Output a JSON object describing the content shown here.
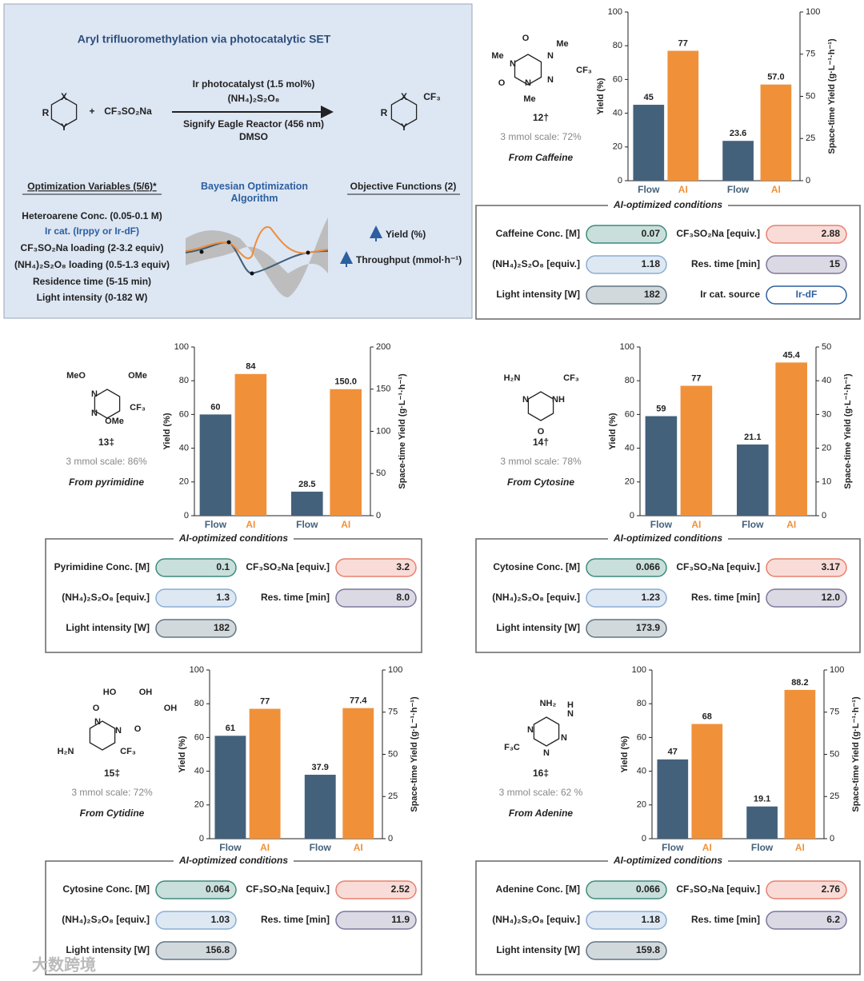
{
  "scheme": {
    "title": "Aryl trifluoromethylation via photocatalytic SET",
    "reactant_atoms": [
      "R",
      "X",
      "Y"
    ],
    "plus": "+",
    "reagent": "CF₃SO₂Na",
    "conditions": [
      "Ir photocatalyst (1.5 mol%)",
      "(NH₄)₂S₂O₈",
      "Signify Eagle Reactor (456 nm)",
      "DMSO"
    ],
    "product_atoms": [
      "R",
      "X",
      "Y",
      "CF₃"
    ],
    "variables": {
      "heading": "Optimization Variables (5/6)*",
      "items": [
        "Heteroarene Conc. (0.05-0.1 M)",
        "Ir cat. (Irppy or Ir-dF)",
        "CF₃SO₂Na loading (2-3.2 equiv)",
        "(NH₄)₂S₂O₈ loading (0.5-1.3 equiv)",
        "Residence time (5-15 min)",
        "Light intensity (0-182 W)"
      ]
    },
    "algorithm": "Bayesian Optimization Algorithm",
    "objectives": {
      "heading": "Objective Functions (2)",
      "items": [
        "Yield (%)",
        "Throughput (mmol·h⁻¹)"
      ]
    }
  },
  "panels": [
    {
      "compound": {
        "atoms": [
          "O",
          "Me",
          "N",
          "Me",
          "N",
          "CF₃",
          "N",
          "O",
          "N",
          "Me"
        ],
        "label": "12†",
        "scale": "3 mmol scale: 72%",
        "source": "From Caffeine"
      },
      "conditions": {
        "title": "AI-optimized conditions",
        "items": [
          {
            "label": "Caffeine Conc. [M]",
            "value": "0.07",
            "color": "#3c8c7c"
          },
          {
            "label": "CF₃SO₂Na [equiv.]",
            "value": "2.88",
            "color": "#e8806e"
          },
          {
            "label": "(NH₄)₂S₂O₈ [equiv.]",
            "value": "1.18",
            "color": "#8aaed4"
          },
          {
            "label": "Res. time [min]",
            "value": "15",
            "color": "#7f769c"
          },
          {
            "label": "Light intensity [W]",
            "value": "182",
            "color": "#5f7584"
          },
          {
            "label": "Ir cat. source",
            "value": "Ir-dF",
            "color": "#2c5fa0"
          }
        ]
      }
    },
    {
      "compound": {
        "atoms": [
          "MeO",
          "OMe",
          "N",
          "N",
          "CF₃",
          "OMe"
        ],
        "label": "13‡",
        "scale": "3 mmol scale: 86%",
        "source": "From pyrimidine"
      },
      "conditions": {
        "title": "AI-optimized conditions",
        "items": [
          {
            "label": "Pyrimidine Conc. [M]",
            "value": "0.1",
            "color": "#3c8c7c"
          },
          {
            "label": "CF₃SO₂Na [equiv.]",
            "value": "3.2",
            "color": "#e8806e"
          },
          {
            "label": "(NH₄)₂S₂O₈ [equiv.]",
            "value": "1.3",
            "color": "#8aaed4"
          },
          {
            "label": "Res. time [min]",
            "value": "8.0",
            "color": "#7f769c"
          },
          {
            "label": "Light intensity [W]",
            "value": "182",
            "color": "#5f7584"
          }
        ]
      }
    },
    {
      "compound": {
        "atoms": [
          "H₂N",
          "CF₃",
          "N",
          "NH",
          "O"
        ],
        "label": "14†",
        "scale": "3 mmol scale: 78%",
        "source": "From Cytosine"
      },
      "conditions": {
        "title": "AI-optimized conditions",
        "items": [
          {
            "label": "Cytosine Conc. [M]",
            "value": "0.066",
            "color": "#3c8c7c"
          },
          {
            "label": "CF₃SO₂Na [equiv.]",
            "value": "3.17",
            "color": "#e8806e"
          },
          {
            "label": "(NH₄)₂S₂O₈ [equiv.]",
            "value": "1.23",
            "color": "#8aaed4"
          },
          {
            "label": "Res. time [min]",
            "value": "12.0",
            "color": "#7f769c"
          },
          {
            "label": "Light intensity [W]",
            "value": "173.9",
            "color": "#5f7584"
          }
        ]
      }
    },
    {
      "compound": {
        "atoms": [
          "HO",
          "OH",
          "O",
          "N",
          "OH",
          "O",
          "N",
          "H₂N",
          "CF₃"
        ],
        "label": "15‡",
        "scale": "3 mmol scale: 72%",
        "source": "From Cytidine"
      },
      "conditions": {
        "title": "AI-optimized conditions",
        "items": [
          {
            "label": "Cytosine Conc. [M]",
            "value": "0.064",
            "color": "#3c8c7c"
          },
          {
            "label": "CF₃SO₂Na [equiv.]",
            "value": "2.52",
            "color": "#e8806e"
          },
          {
            "label": "(NH₄)₂S₂O₈ [equiv.]",
            "value": "1.03",
            "color": "#8aaed4"
          },
          {
            "label": "Res. time [min]",
            "value": "11.9",
            "color": "#7f769c"
          },
          {
            "label": "Light intensity [W]",
            "value": "156.8",
            "color": "#5f7584"
          }
        ]
      }
    },
    {
      "compound": {
        "atoms": [
          "NH₂",
          "H",
          "N",
          "N",
          "N",
          "F₃C",
          "N"
        ],
        "label": "16‡",
        "scale": "3 mmol scale: 62 %",
        "source": "From Adenine"
      },
      "conditions": {
        "title": "AI-optimized conditions",
        "items": [
          {
            "label": "Adenine Conc. [M]",
            "value": "0.066",
            "color": "#3c8c7c"
          },
          {
            "label": "CF₃SO₂Na [equiv.]",
            "value": "2.76",
            "color": "#e8806e"
          },
          {
            "label": "(NH₄)₂S₂O₈ [equiv.]",
            "value": "1.18",
            "color": "#8aaed4"
          },
          {
            "label": "Res. time [min]",
            "value": "6.2",
            "color": "#7f769c"
          },
          {
            "label": "Light intensity [W]",
            "value": "159.8",
            "color": "#5f7584"
          }
        ]
      }
    }
  ],
  "chart_data": [
    {
      "type": "bar",
      "ylabel": "Yield (%)",
      "y2label": "Space-time Yield (g·L⁻¹·h⁻¹)",
      "categories": [
        "Flow",
        "AI"
      ],
      "colors": [
        "#44617b",
        "#f0913a"
      ],
      "series": [
        {
          "values": [
            45,
            77
          ]
        },
        {
          "axis": "y2",
          "values": [
            23.6,
            57.0
          ],
          "value_labels": [
            "23.6",
            "57.0"
          ]
        }
      ],
      "ylim": [
        0,
        100
      ],
      "yticks": [
        0,
        20,
        40,
        60,
        80,
        100
      ],
      "y2lim": [
        0,
        100
      ],
      "y2ticks": [
        0,
        25,
        50,
        75,
        100
      ]
    },
    {
      "type": "bar",
      "ylabel": "Yield (%)",
      "y2label": "Space-time Yield (g·L⁻¹·h⁻¹)",
      "categories": [
        "Flow",
        "AI"
      ],
      "colors": [
        "#44617b",
        "#f0913a"
      ],
      "series": [
        {
          "values": [
            60,
            84
          ]
        },
        {
          "axis": "y2",
          "values": [
            28.5,
            150.0
          ],
          "value_labels": [
            "28.5",
            "150.0"
          ]
        }
      ],
      "ylim": [
        0,
        100
      ],
      "yticks": [
        0,
        20,
        40,
        60,
        80,
        100
      ],
      "y2lim": [
        0,
        200
      ],
      "y2ticks": [
        0,
        50,
        100,
        150,
        200
      ]
    },
    {
      "type": "bar",
      "ylabel": "Yield (%)",
      "y2label": "Space-time Yield (g·L⁻¹·h⁻¹)",
      "categories": [
        "Flow",
        "AI"
      ],
      "colors": [
        "#44617b",
        "#f0913a"
      ],
      "series": [
        {
          "values": [
            59,
            77
          ]
        },
        {
          "axis": "y2",
          "values": [
            21.1,
            45.4
          ],
          "value_labels": [
            "21.1",
            "45.4"
          ]
        }
      ],
      "ylim": [
        0,
        100
      ],
      "yticks": [
        0,
        20,
        40,
        60,
        80,
        100
      ],
      "y2lim": [
        0,
        50
      ],
      "y2ticks": [
        0,
        10,
        20,
        30,
        40,
        50
      ]
    },
    {
      "type": "bar",
      "ylabel": "Yield (%)",
      "y2label": "Space-time Yield (g·L⁻¹·h⁻¹)",
      "categories": [
        "Flow",
        "AI"
      ],
      "colors": [
        "#44617b",
        "#f0913a"
      ],
      "series": [
        {
          "values": [
            61,
            77
          ]
        },
        {
          "axis": "y2",
          "values": [
            37.9,
            77.4
          ],
          "value_labels": [
            "37.9",
            "77.4"
          ]
        }
      ],
      "ylim": [
        0,
        100
      ],
      "yticks": [
        0,
        20,
        40,
        60,
        80,
        100
      ],
      "y2lim": [
        0,
        100
      ],
      "y2ticks": [
        0,
        25,
        50,
        75,
        100
      ]
    },
    {
      "type": "bar",
      "ylabel": "Yield (%)",
      "y2label": "Space-time Yield (g·L⁻¹·h⁻¹)",
      "categories": [
        "Flow",
        "AI"
      ],
      "colors": [
        "#44617b",
        "#f0913a"
      ],
      "series": [
        {
          "values": [
            47,
            68
          ]
        },
        {
          "axis": "y2",
          "values": [
            19.1,
            88.2
          ],
          "value_labels": [
            "19.1",
            "88.2"
          ]
        }
      ],
      "ylim": [
        0,
        100
      ],
      "yticks": [
        0,
        20,
        40,
        60,
        80,
        100
      ],
      "y2lim": [
        0,
        100
      ],
      "y2ticks": [
        0,
        25,
        50,
        75,
        100
      ]
    }
  ],
  "watermark": "大数跨境"
}
